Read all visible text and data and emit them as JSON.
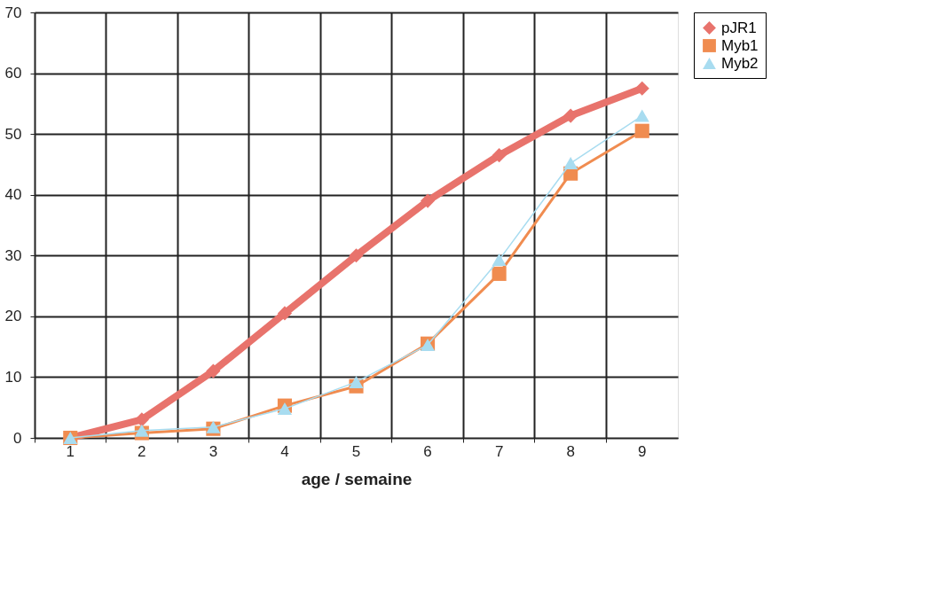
{
  "chart_data": {
    "type": "line",
    "xlabel": "age / semaine",
    "categories": [
      "1",
      "2",
      "3",
      "4",
      "5",
      "6",
      "7",
      "8",
      "9"
    ],
    "series": [
      {
        "name": "pJR1",
        "color": "#e8736c",
        "marker": "diamond",
        "values": [
          0,
          3,
          11,
          20.5,
          30,
          39,
          46.5,
          53,
          57.5
        ]
      },
      {
        "name": "Myb1",
        "color": "#f08c50",
        "marker": "square",
        "values": [
          0,
          0.8,
          1.5,
          5.3,
          8.5,
          15.5,
          27,
          43.5,
          50.5
        ]
      },
      {
        "name": "Myb2",
        "color": "#a8dcf0",
        "marker": "triangle",
        "values": [
          0,
          1.2,
          1.8,
          4.8,
          9.2,
          15.3,
          29.3,
          45.2,
          53
        ]
      }
    ],
    "ylim": [
      0,
      70
    ],
    "yticks": [
      0,
      10,
      20,
      30,
      40,
      50,
      60,
      70
    ],
    "grid": true,
    "legend": "right"
  }
}
